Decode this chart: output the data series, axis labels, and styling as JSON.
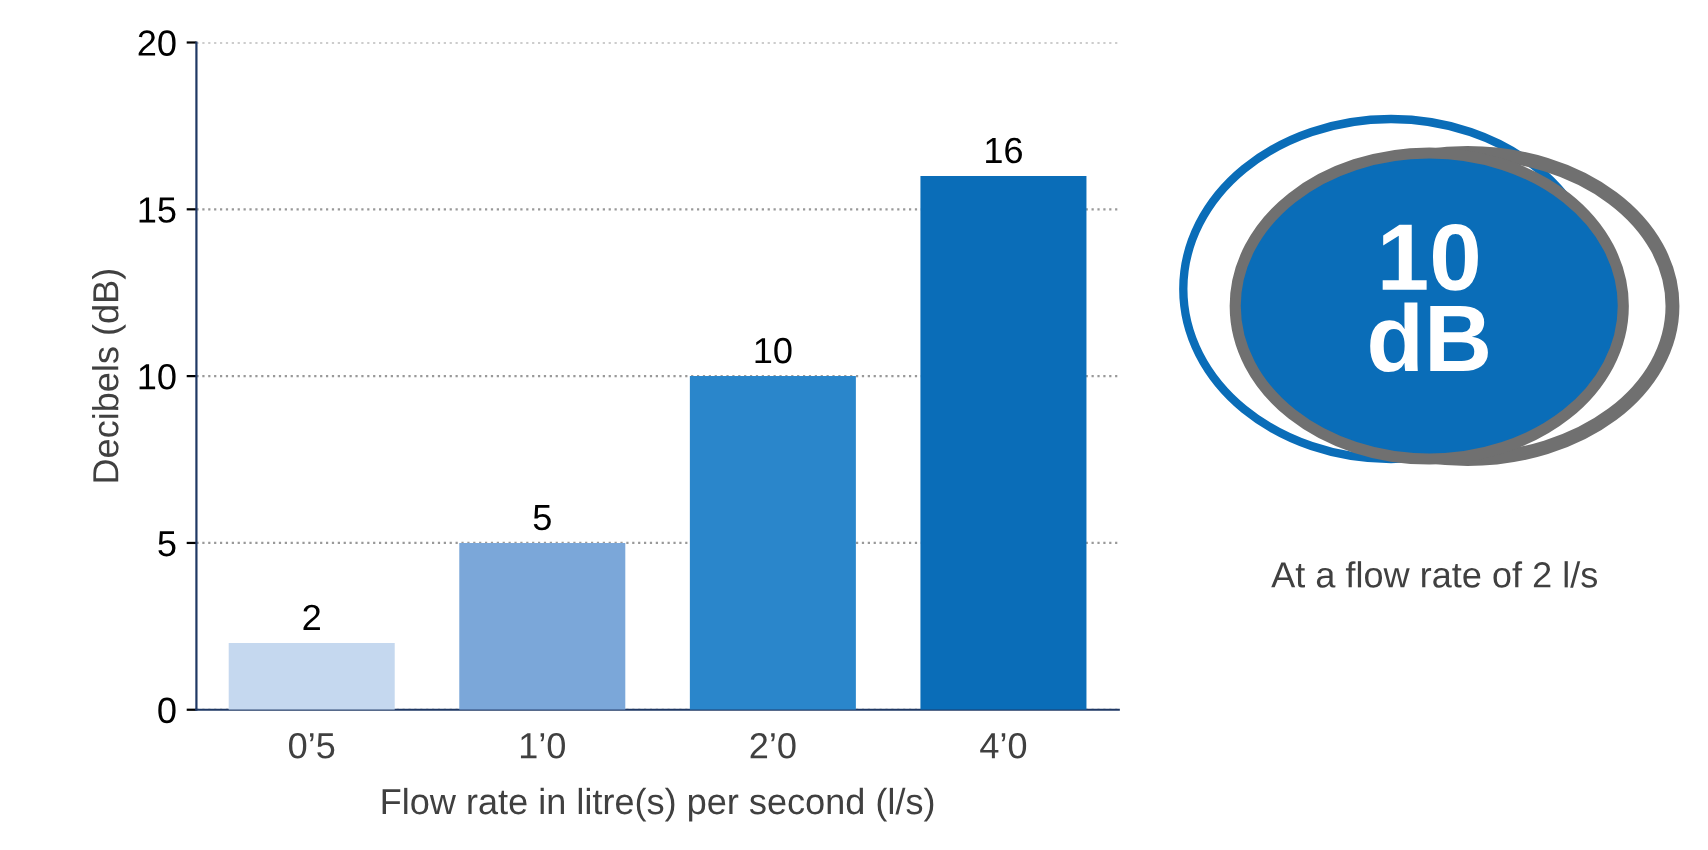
{
  "chart_data": [
    {
      "type": "bar",
      "ylabel": "Decibels (dB)",
      "xlabel": "Flow rate in litre(s) per second (l/s)",
      "categories": [
        "0’5",
        "1’0",
        "2’0",
        "4’0"
      ],
      "values": [
        2,
        5,
        10,
        16
      ],
      "colors": [
        "#c5d8ef",
        "#7ba7d9",
        "#2a86cb",
        "#0a6db8"
      ],
      "data_labels": true,
      "ylim": [
        0,
        20
      ],
      "yticks": [
        0,
        5,
        10,
        15,
        20
      ],
      "grid": "y"
    },
    {
      "type": "other",
      "title": "10 dB",
      "subtitle": "At a flow rate of 2 l/s"
    }
  ]
}
